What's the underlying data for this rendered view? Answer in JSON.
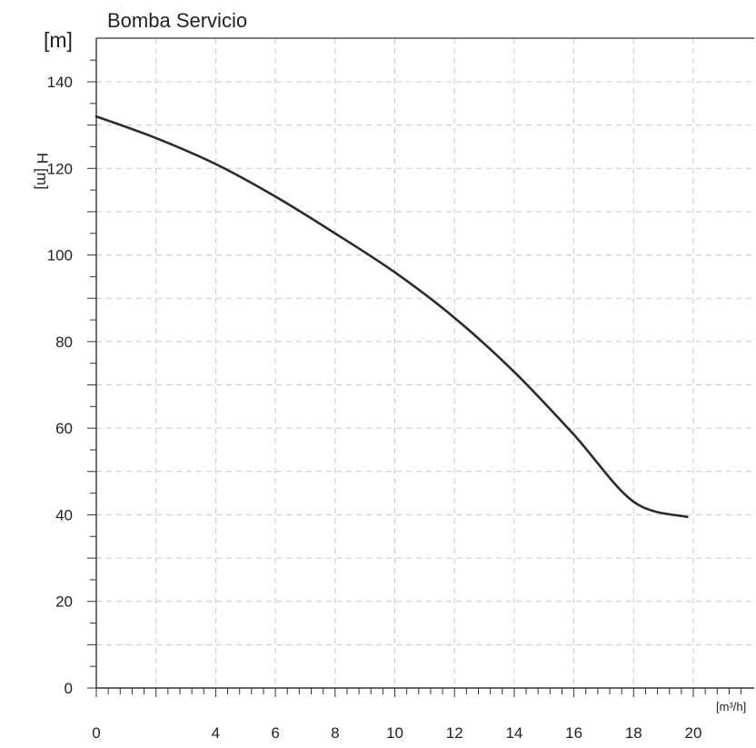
{
  "chart_data": {
    "type": "line",
    "title": "Bomba Servicio",
    "ylabel": "H [m]",
    "y_unit": "[m]",
    "x_unit": "[m³/h]",
    "xlim": [
      0,
      20
    ],
    "ylim": [
      0,
      140
    ],
    "x_ticks": [
      "0",
      "4",
      "6",
      "8",
      "10",
      "12",
      "14",
      "16",
      "18",
      "20"
    ],
    "y_ticks": [
      "0",
      "20",
      "40",
      "60",
      "80",
      "100",
      "120",
      "140"
    ],
    "grid": true,
    "series": [
      {
        "color": "#2b2b2b",
        "x": [
          0,
          2,
          4,
          6,
          8,
          10,
          12,
          14,
          16,
          18,
          19.8
        ],
        "y": [
          132,
          127,
          121,
          113.5,
          105,
          96,
          85.5,
          73,
          58.5,
          43,
          39.5
        ]
      }
    ]
  }
}
